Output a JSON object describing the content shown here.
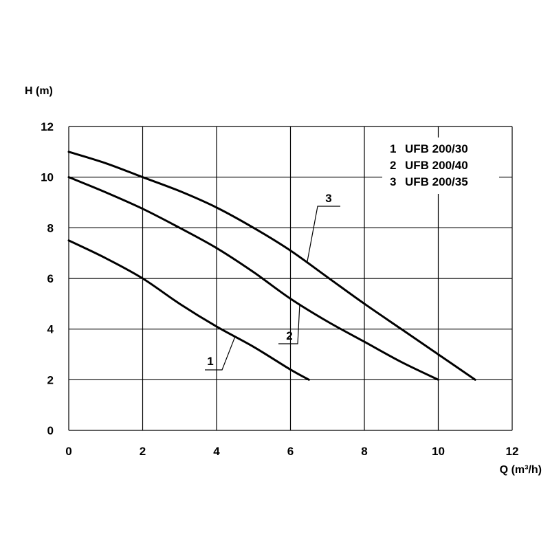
{
  "chart_data": {
    "type": "line",
    "xlabel": "Q (m³/h)",
    "ylabel": "H (m)",
    "xlim": [
      0,
      12
    ],
    "ylim": [
      0,
      12
    ],
    "x_ticks": [
      0,
      2,
      4,
      6,
      8,
      10,
      12
    ],
    "y_ticks": [
      0,
      2,
      4,
      6,
      8,
      10,
      12
    ],
    "grid": true,
    "legend_position": "top-right",
    "legend": [
      {
        "number": "1",
        "model": "UFB 200/30"
      },
      {
        "number": "2",
        "model": "UFB 200/40"
      },
      {
        "number": "3",
        "model": "UFB 200/35"
      }
    ],
    "series": [
      {
        "id": "1",
        "x": [
          0,
          1,
          2,
          3,
          4,
          5,
          6,
          6.5
        ],
        "y": [
          7.5,
          6.8,
          6.0,
          5.0,
          4.1,
          3.3,
          2.4,
          2.0
        ]
      },
      {
        "id": "2",
        "x": [
          0,
          1,
          2,
          3,
          4,
          5,
          6,
          7,
          8,
          9,
          10
        ],
        "y": [
          10.0,
          9.4,
          8.75,
          8.0,
          7.2,
          6.25,
          5.2,
          4.3,
          3.5,
          2.7,
          2.0
        ]
      },
      {
        "id": "3",
        "x": [
          0,
          1,
          2,
          3,
          4,
          5,
          6,
          7,
          8,
          9,
          10,
          11
        ],
        "y": [
          11.0,
          10.55,
          10.0,
          9.45,
          8.8,
          8.0,
          7.1,
          6.05,
          5.0,
          4.0,
          3.0,
          2.0
        ]
      }
    ],
    "callouts": [
      {
        "label": "1",
        "series": "1",
        "anchor_x": 4.5
      },
      {
        "label": "2",
        "series": "2",
        "anchor_x": 6.25
      },
      {
        "label": "3",
        "series": "3",
        "anchor_x": 6.45
      }
    ]
  }
}
